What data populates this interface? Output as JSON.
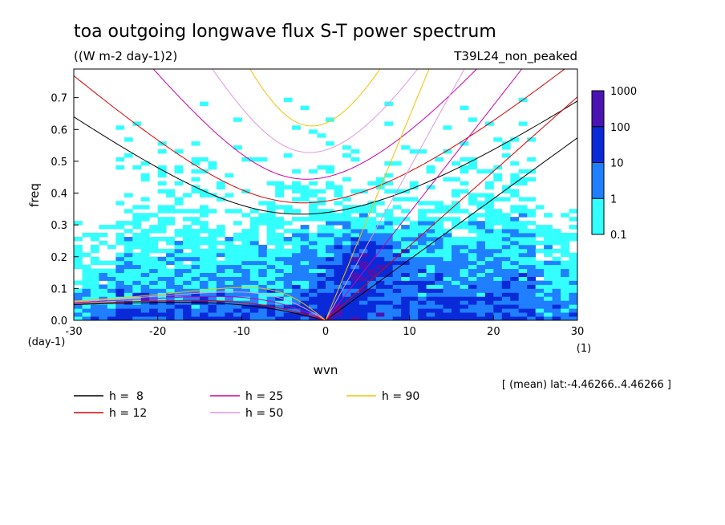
{
  "chart_data": {
    "type": "heatmap",
    "title": "toa outgoing longwave flux S-T power spectrum",
    "units_label": "((W m-2 day-1)2)",
    "run_label": "T39L24_non_peaked",
    "xlabel": "wvn",
    "ylabel": "freq",
    "x_unit_label": "(1)",
    "y_unit_label": "(day-1)",
    "xlim": [
      -30,
      30
    ],
    "ylim": [
      0,
      0.79
    ],
    "x_ticks": [
      -30,
      -20,
      -10,
      0,
      10,
      20,
      30
    ],
    "x_tick_labels": [
      "-30",
      "-20",
      "-10",
      "0",
      "10",
      "20",
      "30"
    ],
    "y_ticks": [
      0.0,
      0.1,
      0.2,
      0.3,
      0.4,
      0.5,
      0.6,
      0.7
    ],
    "y_tick_labels": [
      "0.0",
      "0.1",
      "0.2",
      "0.3",
      "0.4",
      "0.5",
      "0.6",
      "0.7"
    ],
    "footnote": "[ (mean) lat:-4.46266..4.46266 ]",
    "colorbar": {
      "scale": "log",
      "levels": [
        "0.1",
        "1",
        "10",
        "100",
        "1000"
      ],
      "colors": [
        "#33ffff",
        "#1f7fff",
        "#0a2ad9",
        "#4a14b4"
      ]
    },
    "dispersion_curves": [
      {
        "name": "h =  8",
        "h": 8,
        "color": "#000000"
      },
      {
        "name": "h = 12",
        "h": 12,
        "color": "#dd0000"
      },
      {
        "name": "h = 25",
        "h": 25,
        "color": "#cc00aa"
      },
      {
        "name": "h = 50",
        "h": 50,
        "color": "#dd99dd"
      },
      {
        "name": "h = 90",
        "h": 90,
        "color": "#f2c200"
      }
    ],
    "legend_placement": "below plot"
  }
}
